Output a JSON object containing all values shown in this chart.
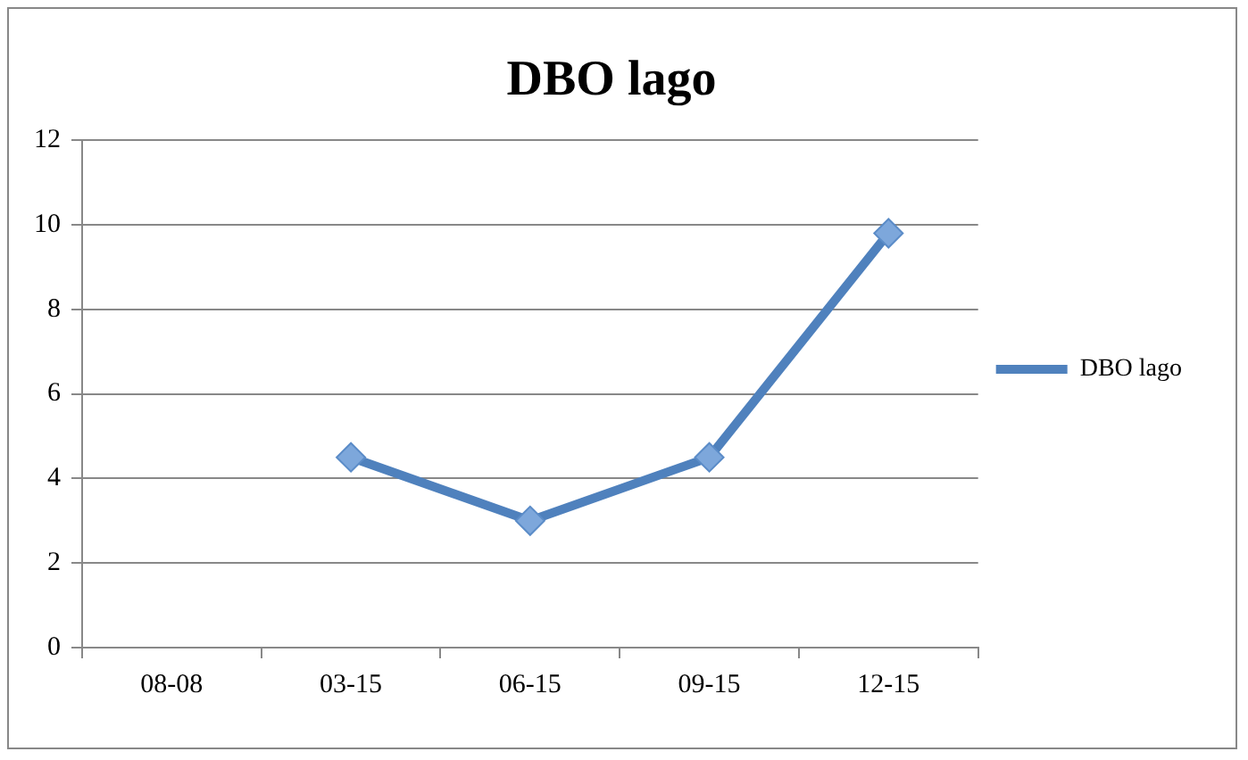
{
  "chart_data": {
    "type": "line",
    "title": "DBO lago",
    "categories": [
      "08-08",
      "03-15",
      "06-15",
      "09-15",
      "12-15"
    ],
    "series": [
      {
        "name": "DBO lago",
        "color": "#4f81bd",
        "values": [
          null,
          4.5,
          3,
          4.5,
          9.8
        ]
      }
    ],
    "ylim": [
      0,
      12
    ],
    "yticks": [
      0,
      2,
      4,
      6,
      8,
      10,
      12
    ],
    "grid": "y",
    "legend": "right",
    "marker": "diamond",
    "line_style": "solid"
  }
}
